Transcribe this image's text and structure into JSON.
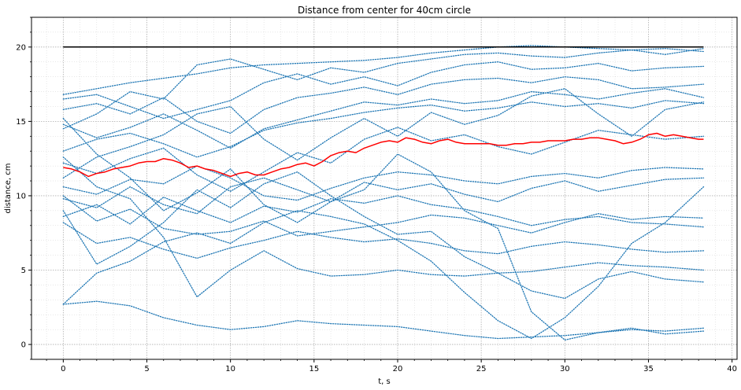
{
  "chart_data": {
    "type": "line",
    "title": "Distance from center for 40cm circle",
    "xlabel": "t, s",
    "ylabel": "distance, cm",
    "xlim": [
      -1.9,
      40.3
    ],
    "ylim": [
      -1,
      22
    ],
    "x_ticks": [
      0,
      5,
      10,
      15,
      20,
      25,
      30,
      35,
      40
    ],
    "y_ticks": [
      0,
      5,
      10,
      15,
      20
    ],
    "x_minor_step": 1,
    "y_minor_step": 1,
    "grid": true,
    "colors": {
      "trajectories": "#1f77b4",
      "mean": "#ff0000",
      "boundary": "#000000",
      "grid": "#b0b0b0"
    },
    "series": [
      {
        "role": "boundary",
        "style": "solid",
        "x": [
          0,
          38.3
        ],
        "y": [
          20,
          20
        ]
      },
      {
        "role": "mean",
        "style": "solid",
        "x": [
          0,
          0.5,
          1,
          1.5,
          2,
          2.5,
          3,
          3.5,
          4,
          4.5,
          5,
          5.5,
          6,
          6.5,
          7,
          7.5,
          8,
          8.5,
          9,
          9.5,
          10,
          10.5,
          11,
          11.5,
          12,
          12.5,
          13,
          13.5,
          14,
          14.5,
          15,
          15.5,
          16,
          16.5,
          17,
          17.5,
          18,
          18.5,
          19,
          19.5,
          20,
          20.5,
          21,
          21.5,
          22,
          22.5,
          23,
          23.5,
          24,
          24.5,
          25,
          25.5,
          26,
          26.5,
          27,
          27.5,
          28,
          28.5,
          29,
          29.5,
          30,
          30.5,
          31,
          31.5,
          32,
          32.5,
          33,
          33.5,
          34,
          34.5,
          35,
          35.5,
          36,
          36.5,
          37,
          37.5,
          38,
          38.3
        ],
        "y": [
          11.9,
          11.8,
          11.6,
          11.3,
          11.5,
          11.6,
          11.8,
          11.9,
          12.0,
          12.2,
          12.3,
          12.3,
          12.5,
          12.4,
          12.2,
          11.9,
          12.0,
          11.8,
          11.7,
          11.5,
          11.3,
          11.5,
          11.6,
          11.4,
          11.4,
          11.6,
          11.8,
          11.9,
          12.1,
          12.2,
          12.0,
          12.3,
          12.7,
          12.9,
          13.0,
          12.9,
          13.2,
          13.4,
          13.6,
          13.7,
          13.6,
          13.9,
          13.8,
          13.6,
          13.5,
          13.7,
          13.8,
          13.6,
          13.5,
          13.5,
          13.5,
          13.5,
          13.4,
          13.4,
          13.5,
          13.5,
          13.6,
          13.6,
          13.7,
          13.7,
          13.7,
          13.8,
          13.8,
          13.9,
          13.9,
          13.8,
          13.7,
          13.5,
          13.6,
          13.8,
          14.1,
          14.2,
          14.0,
          14.1,
          14.0,
          13.9,
          13.8,
          13.8
        ]
      },
      {
        "role": "trajectory",
        "style": "dotted",
        "x": [
          0,
          2,
          4,
          6,
          8,
          10,
          12,
          14,
          16,
          18,
          20,
          22,
          24,
          26,
          28,
          30,
          32,
          34,
          36,
          38.3
        ],
        "y": [
          16.8,
          17.2,
          17.6,
          17.9,
          18.2,
          18.6,
          18.8,
          18.9,
          19.0,
          19.1,
          19.3,
          19.6,
          19.8,
          20.0,
          20.1,
          20.0,
          19.9,
          19.8,
          19.9,
          19.7
        ]
      },
      {
        "role": "trajectory",
        "style": "dotted",
        "x": [
          0,
          2,
          4,
          6,
          8,
          10,
          12,
          14,
          16,
          18,
          20,
          22,
          24,
          26,
          28,
          30,
          32,
          34,
          36,
          38.3
        ],
        "y": [
          14.5,
          15.5,
          17.0,
          16.5,
          18.8,
          19.2,
          18.5,
          17.8,
          18.6,
          18.3,
          18.9,
          19.2,
          19.5,
          19.6,
          19.4,
          19.3,
          19.6,
          19.8,
          19.5,
          19.9
        ]
      },
      {
        "role": "trajectory",
        "style": "dotted",
        "x": [
          0,
          2,
          4,
          6,
          8,
          10,
          12,
          14,
          16,
          18,
          20,
          22,
          24,
          26,
          28,
          30,
          32,
          34,
          36,
          38.3
        ],
        "y": [
          16.5,
          16.8,
          16.0,
          15.2,
          15.8,
          16.4,
          17.6,
          18.2,
          17.5,
          18.0,
          17.4,
          18.3,
          18.8,
          19.0,
          18.5,
          18.6,
          18.9,
          18.4,
          18.6,
          18.7
        ]
      },
      {
        "role": "trajectory",
        "style": "dotted",
        "x": [
          0,
          2,
          4,
          6,
          8,
          10,
          12,
          14,
          16,
          18,
          20,
          22,
          24,
          26,
          28,
          30,
          32,
          34,
          36,
          38.3
        ],
        "y": [
          15.8,
          16.2,
          15.5,
          16.6,
          15.0,
          14.2,
          15.8,
          16.6,
          16.9,
          17.3,
          16.8,
          17.5,
          17.8,
          17.9,
          17.6,
          18.0,
          17.8,
          17.2,
          17.3,
          17.5
        ]
      },
      {
        "role": "trajectory",
        "style": "dotted",
        "x": [
          0,
          2,
          4,
          6,
          8,
          10,
          12,
          14,
          16,
          18,
          20,
          22,
          24,
          26,
          28,
          30,
          32,
          34,
          36,
          38.3
        ],
        "y": [
          14.8,
          13.9,
          14.6,
          15.5,
          14.4,
          13.2,
          14.5,
          15.1,
          15.7,
          16.3,
          16.1,
          16.5,
          16.2,
          16.4,
          17.0,
          16.8,
          16.5,
          16.9,
          17.2,
          16.6
        ]
      },
      {
        "role": "trajectory",
        "style": "dotted",
        "x": [
          0,
          2,
          4,
          6,
          8,
          10,
          12,
          14,
          16,
          18,
          20,
          22,
          24,
          26,
          28,
          30,
          32,
          34,
          36,
          38.3
        ],
        "y": [
          13.0,
          13.8,
          14.2,
          13.5,
          12.6,
          13.3,
          14.4,
          14.9,
          15.2,
          15.6,
          15.9,
          16.1,
          15.7,
          15.9,
          16.3,
          16.0,
          16.2,
          15.9,
          16.4,
          16.2
        ]
      },
      {
        "role": "trajectory",
        "style": "dotted",
        "x": [
          0,
          2,
          4,
          6,
          8,
          10,
          12,
          14,
          16,
          18,
          20,
          22,
          24,
          26,
          28,
          30,
          32,
          34,
          36,
          38.3
        ],
        "y": [
          11.2,
          12.6,
          13.3,
          14.1,
          15.5,
          16.0,
          13.8,
          12.4,
          13.9,
          15.2,
          14.0,
          15.6,
          14.8,
          15.4,
          16.7,
          17.2,
          15.5,
          14.0,
          15.8,
          16.3
        ]
      },
      {
        "role": "trajectory",
        "style": "dotted",
        "x": [
          0,
          2,
          4,
          6,
          8,
          10,
          12,
          14,
          16,
          18,
          20,
          22,
          24,
          26,
          28,
          30,
          32,
          34,
          36,
          38.3
        ],
        "y": [
          12.2,
          11.5,
          12.5,
          13.2,
          11.4,
          10.3,
          11.6,
          12.9,
          12.2,
          13.8,
          14.6,
          13.7,
          14.1,
          13.3,
          12.8,
          13.6,
          14.4,
          14.1,
          13.8,
          14.0
        ]
      },
      {
        "role": "trajectory",
        "style": "dotted",
        "x": [
          0,
          2,
          4,
          6,
          8,
          10,
          12,
          14,
          16,
          18,
          20,
          22,
          24,
          26,
          28,
          30,
          32,
          34,
          36,
          38.3
        ],
        "y": [
          10.6,
          10.1,
          11.1,
          10.8,
          12.0,
          11.2,
          10.0,
          9.7,
          10.5,
          11.2,
          11.6,
          11.4,
          11.0,
          10.8,
          11.3,
          11.5,
          11.2,
          11.7,
          11.9,
          11.8
        ]
      },
      {
        "role": "trajectory",
        "style": "dotted",
        "x": [
          0,
          2,
          4,
          6,
          8,
          10,
          12,
          14,
          16,
          18,
          20,
          22,
          24,
          26,
          28,
          30,
          32,
          34,
          36,
          38.3
        ],
        "y": [
          9.8,
          9.2,
          10.6,
          9.4,
          8.8,
          10.6,
          11.2,
          10.4,
          9.6,
          10.9,
          10.4,
          10.8,
          10.1,
          9.6,
          10.5,
          11.0,
          10.3,
          10.7,
          11.1,
          11.2
        ]
      },
      {
        "role": "trajectory",
        "style": "dotted",
        "x": [
          0,
          2,
          4,
          6,
          8,
          10,
          12,
          14,
          16,
          18,
          20,
          22,
          24,
          26,
          28,
          30,
          32,
          34,
          36,
          38.3
        ],
        "y": [
          8.6,
          9.4,
          8.1,
          9.9,
          9.0,
          8.2,
          9.3,
          8.9,
          9.8,
          9.5,
          10.0,
          9.4,
          9.1,
          8.6,
          8.0,
          8.4,
          8.6,
          8.2,
          8.1,
          7.9
        ]
      },
      {
        "role": "trajectory",
        "style": "dotted",
        "x": [
          0,
          2,
          4,
          6,
          8,
          10,
          12,
          14,
          16,
          18,
          20,
          22,
          24,
          26,
          28,
          30,
          32,
          34,
          36,
          38.3
        ],
        "y": [
          10.0,
          8.3,
          9.1,
          7.8,
          7.4,
          7.6,
          8.3,
          7.3,
          7.6,
          7.9,
          8.2,
          8.7,
          8.5,
          8.0,
          7.5,
          8.2,
          8.8,
          8.4,
          8.6,
          8.5
        ]
      },
      {
        "role": "trajectory",
        "style": "dotted",
        "x": [
          0,
          2,
          4,
          6,
          8,
          10,
          12,
          14,
          16,
          18,
          20,
          22,
          24,
          26,
          28,
          30,
          32,
          34,
          36,
          38.3
        ],
        "y": [
          8.2,
          6.8,
          7.2,
          6.4,
          5.8,
          6.5,
          7.0,
          7.6,
          7.2,
          6.9,
          7.1,
          6.8,
          6.3,
          6.1,
          6.6,
          6.9,
          6.7,
          6.4,
          6.2,
          6.3
        ]
      },
      {
        "role": "trajectory",
        "style": "dotted",
        "x": [
          0,
          2,
          4,
          6,
          8,
          10,
          12,
          14,
          16,
          18,
          20,
          22,
          24,
          26,
          28,
          30,
          32,
          34,
          36,
          38.3
        ],
        "y": [
          12.6,
          10.6,
          9.8,
          7.2,
          3.2,
          5.0,
          6.3,
          5.1,
          4.6,
          4.7,
          5.0,
          4.7,
          4.6,
          4.8,
          4.9,
          5.2,
          5.5,
          5.3,
          5.2,
          5.0
        ]
      },
      {
        "role": "trajectory",
        "style": "dotted",
        "x": [
          0,
          2,
          4,
          6,
          8,
          10,
          12,
          14,
          16,
          18,
          20,
          22,
          24,
          26,
          28,
          30,
          32,
          34,
          36,
          38.3
        ],
        "y": [
          2.7,
          4.8,
          5.6,
          6.9,
          7.5,
          6.8,
          8.2,
          9.0,
          8.6,
          8.1,
          7.0,
          5.6,
          3.5,
          1.6,
          0.4,
          1.8,
          3.9,
          6.8,
          8.2,
          10.6
        ]
      },
      {
        "role": "trajectory",
        "style": "dotted",
        "x": [
          0,
          2,
          4,
          6,
          8,
          10,
          12,
          14,
          16,
          18,
          20,
          22,
          24,
          26,
          28,
          30,
          32,
          34,
          36,
          38.3
        ],
        "y": [
          2.7,
          2.9,
          2.6,
          1.8,
          1.3,
          1.0,
          1.2,
          1.6,
          1.4,
          1.3,
          1.2,
          0.9,
          0.6,
          0.4,
          0.5,
          0.6,
          0.8,
          1.0,
          0.9,
          1.1
        ]
      },
      {
        "role": "trajectory",
        "style": "dotted",
        "x": [
          0,
          2,
          4,
          6,
          8,
          10,
          12,
          14,
          16,
          18,
          20,
          22,
          24,
          26,
          28,
          30,
          32,
          34,
          36,
          38.3
        ],
        "y": [
          9.0,
          5.4,
          6.6,
          8.2,
          10.4,
          9.2,
          10.8,
          11.6,
          10.0,
          8.6,
          7.4,
          7.6,
          5.9,
          4.8,
          3.6,
          3.1,
          4.4,
          4.9,
          4.4,
          4.2
        ]
      },
      {
        "role": "trajectory",
        "style": "dotted",
        "x": [
          0,
          2,
          4,
          6,
          8,
          10,
          12,
          14,
          16,
          18,
          20,
          22,
          24,
          26,
          28,
          30,
          32,
          34,
          36,
          38.3
        ],
        "y": [
          15.2,
          12.8,
          11.2,
          9.0,
          10.2,
          11.8,
          9.4,
          8.2,
          9.6,
          10.4,
          12.8,
          11.6,
          9.0,
          7.8,
          2.2,
          0.3,
          0.8,
          1.1,
          0.7,
          0.9
        ]
      }
    ]
  }
}
